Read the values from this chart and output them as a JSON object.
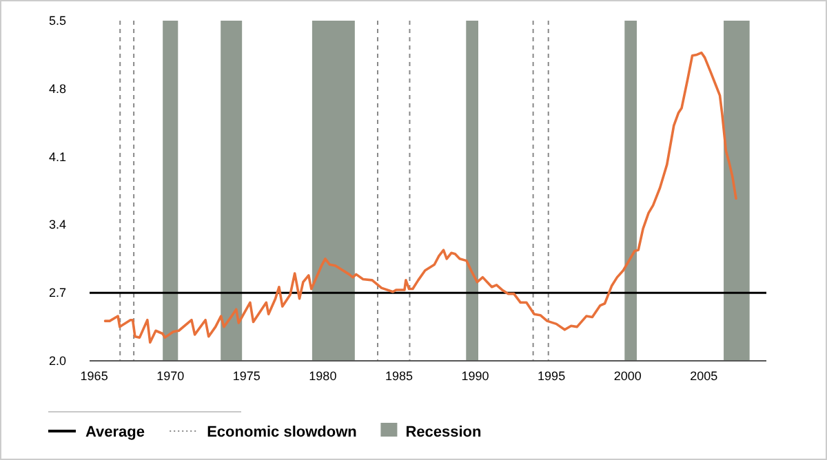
{
  "chart_data": {
    "type": "line",
    "x": [
      1965.72,
      1966.02,
      1966.56,
      1966.68,
      1967.38,
      1967.53,
      1967.68,
      1967.98,
      1968.49,
      1968.67,
      1969.04,
      1969.49,
      1969.64,
      1970.19,
      1970.55,
      1971.39,
      1971.6,
      1972.3,
      1972.51,
      1972.96,
      1973.32,
      1973.51,
      1974.02,
      1974.32,
      1974.48,
      1975.23,
      1975.44,
      1976.29,
      1976.44,
      1976.89,
      1977.13,
      1977.35,
      1977.86,
      1978.16,
      1978.47,
      1978.71,
      1979.07,
      1979.25,
      1979.92,
      1980.16,
      1980.46,
      1980.82,
      1981.73,
      1981.97,
      1982.19,
      1982.64,
      1983.24,
      1983.85,
      1984.6,
      1984.81,
      1985.36,
      1985.45,
      1985.66,
      1985.9,
      1986.26,
      1986.71,
      1987.32,
      1987.62,
      1987.92,
      1988.13,
      1988.43,
      1988.68,
      1988.98,
      1989.43,
      1989.73,
      1990.13,
      1990.49,
      1990.79,
      1991.09,
      1991.4,
      1991.76,
      1992.15,
      1992.54,
      1992.97,
      1993.36,
      1993.87,
      1994.27,
      1994.72,
      1995.32,
      1995.87,
      1996.29,
      1996.68,
      1997.29,
      1997.68,
      1998.2,
      1998.5,
      1998.95,
      1999.31,
      1999.71,
      2000.16,
      2000.46,
      2000.7,
      2001.01,
      2001.37,
      2001.67,
      2002.12,
      2002.58,
      2003.03,
      2003.33,
      2003.54,
      2003.94,
      2004.24,
      2004.54,
      2004.84,
      2005.06,
      2005.45,
      2005.75,
      2006.05,
      2006.2,
      2006.45,
      2006.66,
      2006.87,
      2007.11
    ],
    "series": [
      {
        "color": "#e8713a",
        "values": [
          2.41,
          2.41,
          2.46,
          2.35,
          2.42,
          2.42,
          2.25,
          2.24,
          2.42,
          2.19,
          2.31,
          2.28,
          2.24,
          2.3,
          2.31,
          2.42,
          2.27,
          2.42,
          2.25,
          2.35,
          2.46,
          2.35,
          2.46,
          2.53,
          2.39,
          2.6,
          2.4,
          2.6,
          2.48,
          2.64,
          2.76,
          2.56,
          2.68,
          2.9,
          2.64,
          2.81,
          2.88,
          2.74,
          2.98,
          3.05,
          2.99,
          2.98,
          2.89,
          2.86,
          2.89,
          2.84,
          2.83,
          2.75,
          2.71,
          2.73,
          2.73,
          2.83,
          2.74,
          2.74,
          2.83,
          2.93,
          2.99,
          3.08,
          3.14,
          3.05,
          3.11,
          3.1,
          3.05,
          3.03,
          2.93,
          2.81,
          2.86,
          2.81,
          2.76,
          2.78,
          2.73,
          2.69,
          2.69,
          2.6,
          2.6,
          2.48,
          2.47,
          2.41,
          2.38,
          2.32,
          2.36,
          2.35,
          2.46,
          2.45,
          2.57,
          2.59,
          2.77,
          2.86,
          2.93,
          3.05,
          3.13,
          3.14,
          3.36,
          3.52,
          3.6,
          3.78,
          4.02,
          4.42,
          4.55,
          4.6,
          4.9,
          5.14,
          5.15,
          5.17,
          5.12,
          4.97,
          4.85,
          4.73,
          4.54,
          4.16,
          4.04,
          3.9,
          3.67
        ]
      }
    ],
    "xlim": [
      1964.7,
      2009.1
    ],
    "xticks": [
      1965,
      1970,
      1975,
      1980,
      1985,
      1990,
      1995,
      2000,
      2005
    ],
    "ylim": [
      2.0,
      5.5
    ],
    "yticks": [
      {
        "value": 2.0,
        "label": "2.0"
      },
      2.7,
      3.4,
      4.1,
      4.8,
      5.5
    ],
    "ref_lines": [
      {
        "axis": "y",
        "value": 2.7,
        "label": "Average",
        "color": "#000000",
        "line_style": "solid"
      },
      {
        "axis": "x",
        "value": 1966.7,
        "label": "Economic slowdown",
        "color": "#888888",
        "line_style": "dashed"
      },
      {
        "axis": "x",
        "value": 1967.6,
        "color": "#888888",
        "line_style": "dashed"
      },
      {
        "axis": "x",
        "value": 1983.6,
        "color": "#888888",
        "line_style": "dashed"
      },
      {
        "axis": "x",
        "value": 1985.7,
        "color": "#888888",
        "line_style": "dashed"
      },
      {
        "axis": "x",
        "value": 1993.8,
        "color": "#888888",
        "line_style": "dashed"
      },
      {
        "axis": "x",
        "value": 1994.8,
        "color": "#888888",
        "line_style": "dashed"
      }
    ],
    "bands": [
      {
        "axis": "x",
        "from": 1969.5,
        "to": 1970.5,
        "label": "Recession",
        "color": "#909a90"
      },
      {
        "axis": "x",
        "from": 1973.3,
        "to": 1974.7,
        "color": "#909a90"
      },
      {
        "axis": "x",
        "from": 1979.3,
        "to": 1982.1,
        "color": "#909a90"
      },
      {
        "axis": "x",
        "from": 1989.4,
        "to": 1990.2,
        "color": "#909a90"
      },
      {
        "axis": "x",
        "from": 1999.8,
        "to": 2000.6,
        "color": "#909a90"
      },
      {
        "axis": "x",
        "from": 2006.3,
        "to": 2008.0,
        "color": "#909a90"
      }
    ],
    "grid": false,
    "legend": "bottom"
  }
}
